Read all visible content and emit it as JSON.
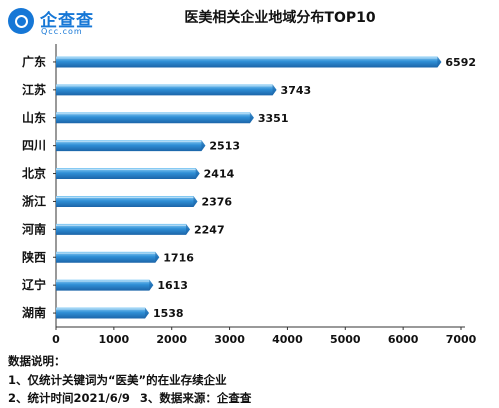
{
  "brand": {
    "name": "企查查",
    "domain": "Qcc.com"
  },
  "notes": {
    "heading": "数据说明：",
    "line1": "1、仅统计关键词为“医美”的在业存续企业",
    "line2a": "2、统计时间2021/6/9",
    "line2b": "3、数据来源：企查查"
  },
  "chart_data": {
    "type": "bar",
    "orientation": "horizontal",
    "title": "医美相关企业地域分布TOP10",
    "xlabel": "",
    "ylabel": "",
    "categories": [
      "广东",
      "江苏",
      "山东",
      "四川",
      "北京",
      "浙江",
      "河南",
      "陕西",
      "辽宁",
      "湖南"
    ],
    "values": [
      6592,
      3743,
      3351,
      2513,
      2414,
      2376,
      2247,
      1716,
      1613,
      1538
    ],
    "xlim": [
      0,
      7000
    ],
    "xticks": [
      0,
      1000,
      2000,
      3000,
      4000,
      5000,
      6000,
      7000
    ],
    "grid": false,
    "legend": "none",
    "bar_color": "#2f8fd6",
    "bar_color_light": "#8fd0f6",
    "bar_color_dark": "#1b64a8"
  }
}
